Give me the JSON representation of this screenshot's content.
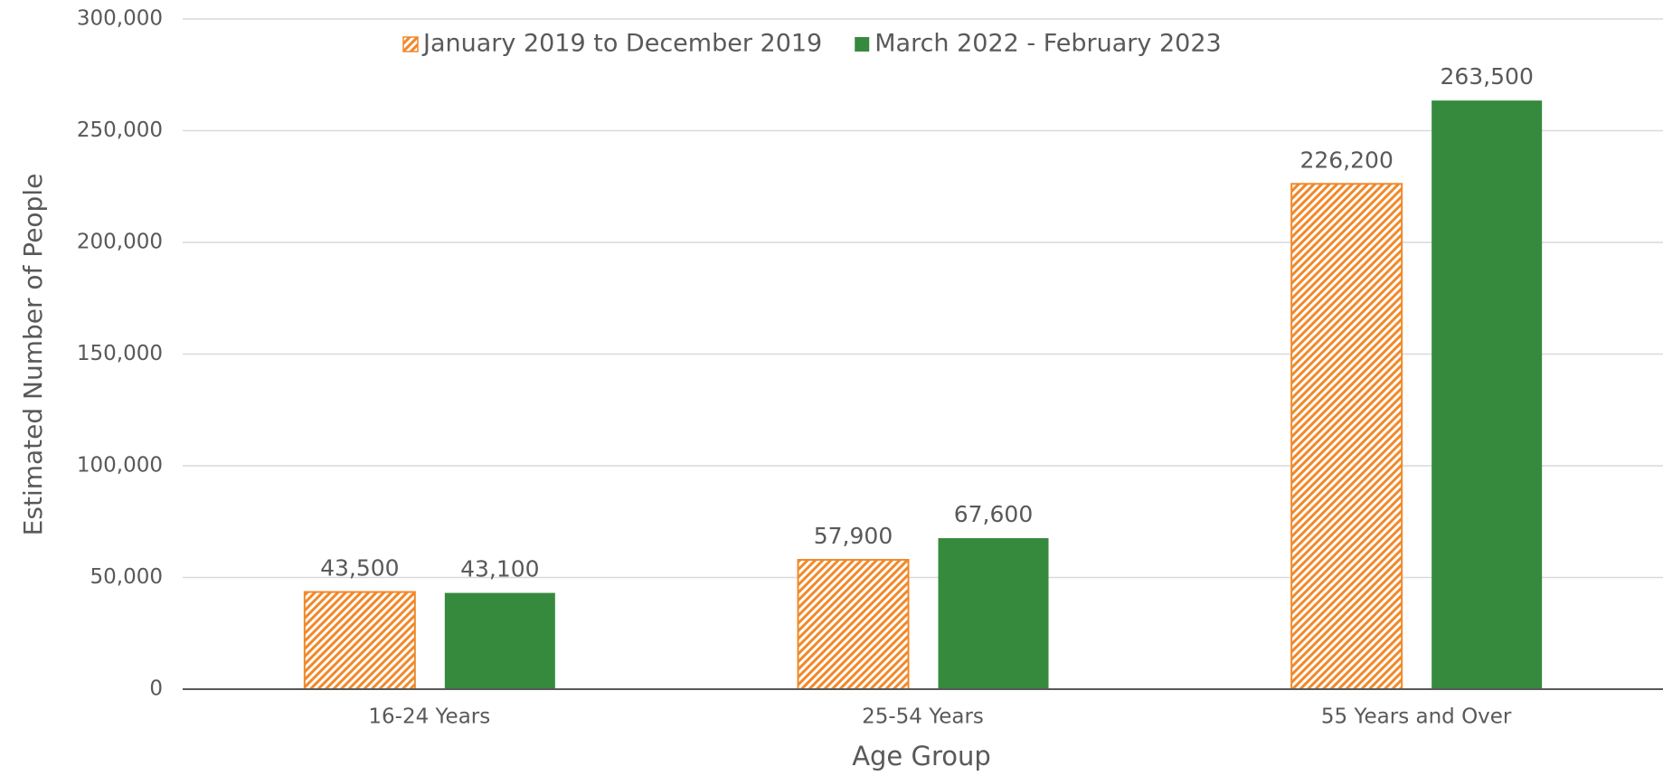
{
  "chart_data": {
    "type": "bar",
    "x_label": "Age Group",
    "y_label": "Estimated Number of People",
    "categories": [
      "16-24 Years",
      "25-54 Years",
      "55 Years and Over"
    ],
    "series": [
      {
        "name": "January 2019 to December 2019",
        "color": "#f0892a",
        "pattern": "hatch",
        "values": [
          43500,
          57900,
          226200
        ],
        "value_labels": [
          "43,500",
          "57,900",
          "226,200"
        ]
      },
      {
        "name": "March 2022 - February 2023",
        "color": "#368a3e",
        "values": [
          43100,
          67600,
          263500
        ],
        "value_labels": [
          "43,100",
          "67,600",
          "263,500"
        ]
      }
    ],
    "ylim": [
      0,
      300000
    ],
    "yticks": [
      0,
      {
        "value": 50000,
        "label": "50,000"
      },
      {
        "value": 100000,
        "label": "100,000"
      },
      {
        "value": 150000,
        "label": "150,000"
      },
      {
        "value": 200000,
        "label": "200,000"
      },
      {
        "value": 250000,
        "label": "250,000"
      },
      {
        "value": 300000,
        "label": "300,000"
      }
    ],
    "grid": true,
    "legend": "top"
  }
}
